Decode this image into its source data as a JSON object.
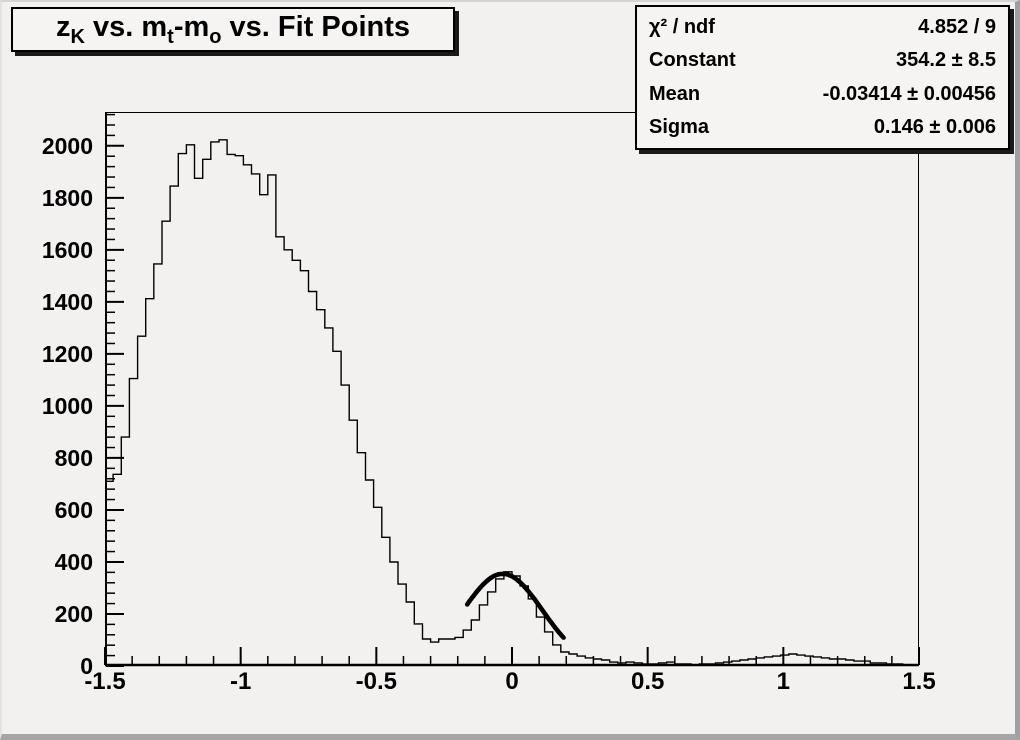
{
  "title": {
    "text": "z_K vs. m_t-m_o vs. Fit Points",
    "parts": [
      {
        "text": "z",
        "sub": false
      },
      {
        "text": "K",
        "sub": true
      },
      {
        "text": " vs. m",
        "sub": false
      },
      {
        "text": "t",
        "sub": true
      },
      {
        "text": "-m",
        "sub": false
      },
      {
        "text": "o",
        "sub": true
      },
      {
        "text": " vs. Fit Points",
        "sub": false
      }
    ]
  },
  "stats": {
    "rows": [
      {
        "label": "χ² / ndf",
        "value": "4.852 / 9"
      },
      {
        "label": "Constant",
        "value": "354.2 ± 8.5"
      },
      {
        "label": "Mean",
        "value": "-0.03414 ± 0.00456"
      },
      {
        "label": "Sigma",
        "value": "0.146 ± 0.006"
      }
    ]
  },
  "colors": {
    "canvas_background": "#f2f1f0",
    "box_background": "#f5f4f3",
    "line": "#000000",
    "fit_line": "#000000",
    "frame_border": "#000000",
    "window_bevel": "#a5a5a5"
  },
  "chart_data": {
    "type": "bar",
    "subtype": "step-histogram-with-gaussian-fit",
    "title": "z_K vs. m_t-m_o vs. Fit Points",
    "xlabel": "",
    "ylabel": "",
    "x_range": [
      -1.5,
      1.5
    ],
    "y_range": [
      0,
      2130
    ],
    "bin_start": -1.5,
    "bin_width": 0.03,
    "n_bins": 100,
    "values": [
      710,
      737,
      880,
      1105,
      1268,
      1412,
      1546,
      1710,
      1845,
      1970,
      2004,
      1875,
      1948,
      2015,
      2023,
      1967,
      1962,
      1927,
      1892,
      1812,
      1888,
      1650,
      1600,
      1560,
      1520,
      1440,
      1370,
      1300,
      1210,
      1080,
      945,
      820,
      715,
      610,
      495,
      400,
      315,
      246,
      162,
      104,
      92,
      104,
      104,
      110,
      138,
      177,
      235,
      285,
      335,
      362,
      346,
      308,
      258,
      188,
      131,
      81,
      54,
      46,
      38,
      31,
      27,
      23,
      15,
      12,
      15,
      12,
      8,
      8,
      12,
      15,
      8,
      8,
      4,
      8,
      8,
      12,
      15,
      19,
      23,
      27,
      31,
      35,
      38,
      42,
      46,
      42,
      38,
      35,
      31,
      27,
      27,
      23,
      19,
      19,
      12,
      12,
      8,
      8,
      4,
      4
    ],
    "x_major_ticks": [
      {
        "v": -1.5,
        "label": "-1.5"
      },
      {
        "v": -1.0,
        "label": "-1"
      },
      {
        "v": -0.5,
        "label": "-0.5"
      },
      {
        "v": 0.0,
        "label": "0"
      },
      {
        "v": 0.5,
        "label": "0.5"
      },
      {
        "v": 1.0,
        "label": "1"
      },
      {
        "v": 1.5,
        "label": "1.5"
      }
    ],
    "x_minor_step": 0.1,
    "y_major_ticks": [
      {
        "v": 0,
        "label": "0"
      },
      {
        "v": 200,
        "label": "200"
      },
      {
        "v": 400,
        "label": "400"
      },
      {
        "v": 600,
        "label": "600"
      },
      {
        "v": 800,
        "label": "800"
      },
      {
        "v": 1000,
        "label": "1000"
      },
      {
        "v": 1200,
        "label": "1200"
      },
      {
        "v": 1400,
        "label": "1400"
      },
      {
        "v": 1600,
        "label": "1600"
      },
      {
        "v": 1800,
        "label": "1800"
      },
      {
        "v": 2000,
        "label": "2000"
      }
    ],
    "y_minor_step": 40,
    "grid": false,
    "legend": "none",
    "fit": {
      "type": "gaussian",
      "chi2": 4.852,
      "ndf": 9,
      "constant": 354.2,
      "mean": -0.03414,
      "sigma": 0.146,
      "draw_range": [
        -0.165,
        0.19
      ]
    }
  }
}
